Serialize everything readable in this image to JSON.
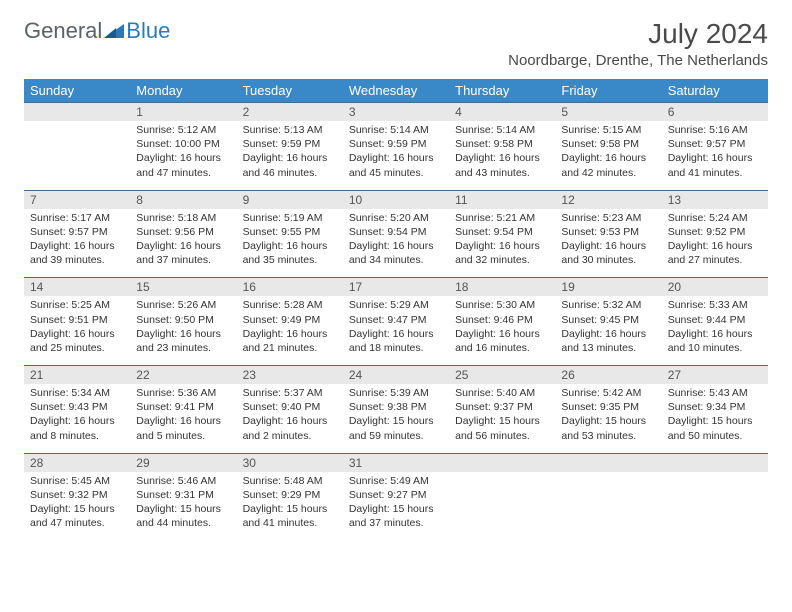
{
  "brand": {
    "part1": "General",
    "part2": "Blue"
  },
  "title": "July 2024",
  "location": "Noordbarge, Drenthe, The Netherlands",
  "colors": {
    "header_bg": "#3989c9",
    "daynum_bg": "#e8e8e8",
    "row_border": "#4a6a8a"
  },
  "weekdays": [
    "Sunday",
    "Monday",
    "Tuesday",
    "Wednesday",
    "Thursday",
    "Friday",
    "Saturday"
  ],
  "weeks": [
    [
      null,
      {
        "n": "1",
        "sr": "5:12 AM",
        "ss": "10:00 PM",
        "dl": "16 hours and 47 minutes."
      },
      {
        "n": "2",
        "sr": "5:13 AM",
        "ss": "9:59 PM",
        "dl": "16 hours and 46 minutes."
      },
      {
        "n": "3",
        "sr": "5:14 AM",
        "ss": "9:59 PM",
        "dl": "16 hours and 45 minutes."
      },
      {
        "n": "4",
        "sr": "5:14 AM",
        "ss": "9:58 PM",
        "dl": "16 hours and 43 minutes."
      },
      {
        "n": "5",
        "sr": "5:15 AM",
        "ss": "9:58 PM",
        "dl": "16 hours and 42 minutes."
      },
      {
        "n": "6",
        "sr": "5:16 AM",
        "ss": "9:57 PM",
        "dl": "16 hours and 41 minutes."
      }
    ],
    [
      {
        "n": "7",
        "sr": "5:17 AM",
        "ss": "9:57 PM",
        "dl": "16 hours and 39 minutes."
      },
      {
        "n": "8",
        "sr": "5:18 AM",
        "ss": "9:56 PM",
        "dl": "16 hours and 37 minutes."
      },
      {
        "n": "9",
        "sr": "5:19 AM",
        "ss": "9:55 PM",
        "dl": "16 hours and 35 minutes."
      },
      {
        "n": "10",
        "sr": "5:20 AM",
        "ss": "9:54 PM",
        "dl": "16 hours and 34 minutes."
      },
      {
        "n": "11",
        "sr": "5:21 AM",
        "ss": "9:54 PM",
        "dl": "16 hours and 32 minutes."
      },
      {
        "n": "12",
        "sr": "5:23 AM",
        "ss": "9:53 PM",
        "dl": "16 hours and 30 minutes."
      },
      {
        "n": "13",
        "sr": "5:24 AM",
        "ss": "9:52 PM",
        "dl": "16 hours and 27 minutes."
      }
    ],
    [
      {
        "n": "14",
        "sr": "5:25 AM",
        "ss": "9:51 PM",
        "dl": "16 hours and 25 minutes."
      },
      {
        "n": "15",
        "sr": "5:26 AM",
        "ss": "9:50 PM",
        "dl": "16 hours and 23 minutes."
      },
      {
        "n": "16",
        "sr": "5:28 AM",
        "ss": "9:49 PM",
        "dl": "16 hours and 21 minutes."
      },
      {
        "n": "17",
        "sr": "5:29 AM",
        "ss": "9:47 PM",
        "dl": "16 hours and 18 minutes."
      },
      {
        "n": "18",
        "sr": "5:30 AM",
        "ss": "9:46 PM",
        "dl": "16 hours and 16 minutes."
      },
      {
        "n": "19",
        "sr": "5:32 AM",
        "ss": "9:45 PM",
        "dl": "16 hours and 13 minutes."
      },
      {
        "n": "20",
        "sr": "5:33 AM",
        "ss": "9:44 PM",
        "dl": "16 hours and 10 minutes."
      }
    ],
    [
      {
        "n": "21",
        "sr": "5:34 AM",
        "ss": "9:43 PM",
        "dl": "16 hours and 8 minutes."
      },
      {
        "n": "22",
        "sr": "5:36 AM",
        "ss": "9:41 PM",
        "dl": "16 hours and 5 minutes."
      },
      {
        "n": "23",
        "sr": "5:37 AM",
        "ss": "9:40 PM",
        "dl": "16 hours and 2 minutes."
      },
      {
        "n": "24",
        "sr": "5:39 AM",
        "ss": "9:38 PM",
        "dl": "15 hours and 59 minutes."
      },
      {
        "n": "25",
        "sr": "5:40 AM",
        "ss": "9:37 PM",
        "dl": "15 hours and 56 minutes."
      },
      {
        "n": "26",
        "sr": "5:42 AM",
        "ss": "9:35 PM",
        "dl": "15 hours and 53 minutes."
      },
      {
        "n": "27",
        "sr": "5:43 AM",
        "ss": "9:34 PM",
        "dl": "15 hours and 50 minutes."
      }
    ],
    [
      {
        "n": "28",
        "sr": "5:45 AM",
        "ss": "9:32 PM",
        "dl": "15 hours and 47 minutes."
      },
      {
        "n": "29",
        "sr": "5:46 AM",
        "ss": "9:31 PM",
        "dl": "15 hours and 44 minutes."
      },
      {
        "n": "30",
        "sr": "5:48 AM",
        "ss": "9:29 PM",
        "dl": "15 hours and 41 minutes."
      },
      {
        "n": "31",
        "sr": "5:49 AM",
        "ss": "9:27 PM",
        "dl": "15 hours and 37 minutes."
      },
      null,
      null,
      null
    ]
  ],
  "labels": {
    "sunrise": "Sunrise:",
    "sunset": "Sunset:",
    "daylight": "Daylight:"
  }
}
